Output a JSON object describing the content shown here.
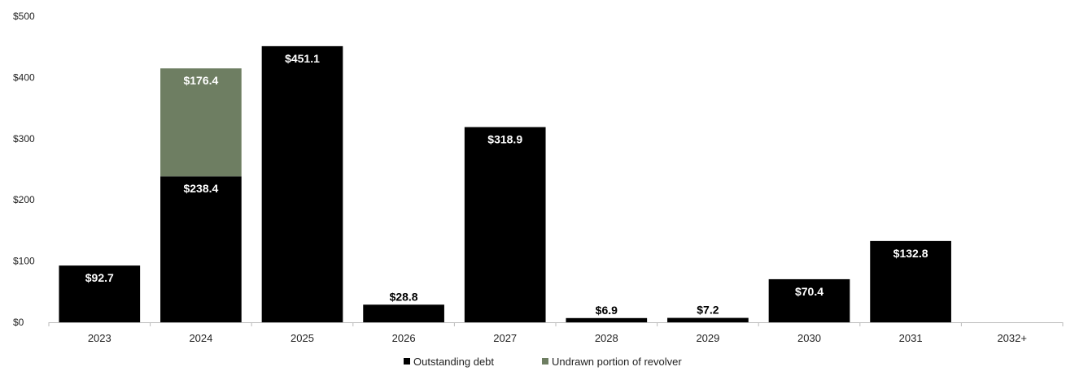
{
  "chart_data": {
    "type": "bar",
    "stacked": true,
    "categories": [
      "2023",
      "2024",
      "2025",
      "2026",
      "2027",
      "2028",
      "2029",
      "2030",
      "2031",
      "2032+"
    ],
    "series": [
      {
        "name": "Outstanding debt",
        "color": "#000000",
        "values": [
          92.7,
          238.4,
          451.1,
          28.8,
          318.9,
          6.9,
          7.2,
          70.4,
          132.8,
          null
        ],
        "labels": [
          "$92.7",
          "$238.4",
          "$451.1",
          "$28.8",
          "$318.9",
          "$6.9",
          "$7.2",
          "$70.4",
          "$132.8",
          ""
        ]
      },
      {
        "name": "Undrawn portion of revolver",
        "color": "#6e7e62",
        "values": [
          null,
          176.4,
          null,
          null,
          null,
          null,
          null,
          null,
          null,
          null
        ],
        "labels": [
          "",
          "$176.4",
          "",
          "",
          "",
          "",
          "",
          "",
          "",
          ""
        ]
      }
    ],
    "ylim": [
      0,
      500
    ],
    "yticks": [
      0,
      100,
      200,
      300,
      400,
      500
    ],
    "ytick_labels": [
      "$0",
      "$100",
      "$200",
      "$300",
      "$400",
      "$500"
    ],
    "title": "",
    "xlabel": "",
    "ylabel": "",
    "legend_position": "bottom-center",
    "grid": false
  }
}
